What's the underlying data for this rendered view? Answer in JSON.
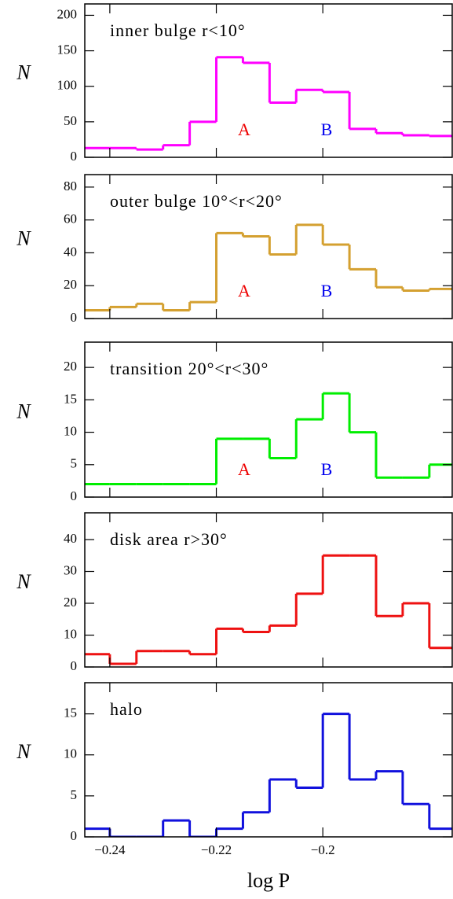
{
  "chart_data": [
    {
      "type": "histogram",
      "title": "inner bulge  r<10°",
      "ylabel": "N",
      "color": "#ff00ff",
      "bins": [
        -0.245,
        -0.24,
        -0.235,
        -0.23,
        -0.225,
        -0.22,
        -0.215,
        -0.21,
        -0.205,
        -0.2,
        -0.195,
        -0.19,
        -0.185,
        -0.18,
        -0.175
      ],
      "values": [
        13,
        13,
        11,
        17,
        50,
        141,
        133,
        77,
        95,
        92,
        40,
        34,
        31,
        30
      ],
      "xlim": [
        -0.2447,
        -0.1757
      ],
      "ylim": [
        0,
        216
      ],
      "yticks": [
        0,
        50,
        100,
        150,
        200
      ],
      "xticks": [
        {
          "value": -0.24,
          "label": "−0.24"
        },
        {
          "value": -0.22,
          "label": "−0.22"
        },
        {
          "value": -0.2,
          "label": "−0.2"
        }
      ],
      "annotations": [
        {
          "text": "A",
          "color": "#ee0000"
        },
        {
          "text": "B",
          "color": "#0000ee"
        }
      ]
    },
    {
      "type": "histogram",
      "title": "outer bulge  10°<r<20°",
      "ylabel": "N",
      "color": "#d4a030",
      "bins": [
        -0.245,
        -0.24,
        -0.235,
        -0.23,
        -0.225,
        -0.22,
        -0.215,
        -0.21,
        -0.205,
        -0.2,
        -0.195,
        -0.19,
        -0.185,
        -0.18,
        -0.175
      ],
      "values": [
        5,
        7,
        9,
        5,
        10,
        52,
        50,
        39,
        57,
        45,
        30,
        19,
        17,
        18
      ],
      "xlim": [
        -0.2447,
        -0.1757
      ],
      "ylim": [
        0,
        87.6
      ],
      "yticks": [
        0,
        20,
        40,
        60,
        80
      ],
      "xticks": [
        {
          "value": -0.24,
          "label": "−0.24"
        },
        {
          "value": -0.22,
          "label": "−0.22"
        },
        {
          "value": -0.2,
          "label": "−0.2"
        }
      ],
      "annotations": [
        {
          "text": "A",
          "color": "#ee0000"
        },
        {
          "text": "B",
          "color": "#0000ee"
        }
      ]
    },
    {
      "type": "histogram",
      "title": "transition  20°<r<30°",
      "ylabel": "N",
      "color": "#00ee00",
      "bins": [
        -0.245,
        -0.24,
        -0.235,
        -0.23,
        -0.225,
        -0.22,
        -0.215,
        -0.21,
        -0.205,
        -0.2,
        -0.195,
        -0.19,
        -0.185,
        -0.18,
        -0.175
      ],
      "values": [
        2,
        2,
        2,
        2,
        2,
        9,
        9,
        6,
        12,
        16,
        10,
        3,
        3,
        5
      ],
      "xlim": [
        -0.2447,
        -0.1757
      ],
      "ylim": [
        0,
        23.9
      ],
      "yticks": [
        0,
        5,
        10,
        15,
        20
      ],
      "xticks": [
        {
          "value": -0.24,
          "label": "−0.24"
        },
        {
          "value": -0.22,
          "label": "−0.22"
        },
        {
          "value": -0.2,
          "label": "−0.2"
        }
      ],
      "annotations": [
        {
          "text": "A",
          "color": "#ee0000"
        },
        {
          "text": "B",
          "color": "#0000ee"
        }
      ]
    },
    {
      "type": "histogram",
      "title": "disk area  r>30°",
      "ylabel": "N",
      "color": "#ee1111",
      "bins": [
        -0.245,
        -0.24,
        -0.235,
        -0.23,
        -0.225,
        -0.22,
        -0.215,
        -0.21,
        -0.205,
        -0.2,
        -0.195,
        -0.19,
        -0.185,
        -0.18,
        -0.175
      ],
      "values": [
        4,
        1,
        5,
        5,
        4,
        12,
        11,
        13,
        23,
        35,
        35,
        16,
        20,
        6
      ],
      "xlim": [
        -0.2447,
        -0.1757
      ],
      "ylim": [
        0,
        48.4
      ],
      "yticks": [
        0,
        10,
        20,
        30,
        40
      ],
      "xticks": [
        {
          "value": -0.24,
          "label": "−0.24"
        },
        {
          "value": -0.22,
          "label": "−0.22"
        },
        {
          "value": -0.2,
          "label": "−0.2"
        }
      ]
    },
    {
      "type": "histogram",
      "title": "halo",
      "ylabel": "N",
      "xlabel": "log P",
      "color": "#1010dd",
      "bins": [
        -0.245,
        -0.24,
        -0.235,
        -0.23,
        -0.225,
        -0.22,
        -0.215,
        -0.21,
        -0.205,
        -0.2,
        -0.195,
        -0.19,
        -0.185,
        -0.18,
        -0.175
      ],
      "values": [
        1,
        0,
        0,
        2,
        0,
        1,
        3,
        7,
        6,
        15,
        7,
        8,
        4,
        1
      ],
      "xlim": [
        -0.2447,
        -0.1757
      ],
      "ylim": [
        0,
        18.8
      ],
      "yticks": [
        0,
        5,
        10,
        15
      ],
      "xticks": [
        {
          "value": -0.24,
          "label": "−0.24"
        },
        {
          "value": -0.22,
          "label": "−0.22"
        },
        {
          "value": -0.2,
          "label": "−0.2"
        }
      ]
    }
  ]
}
